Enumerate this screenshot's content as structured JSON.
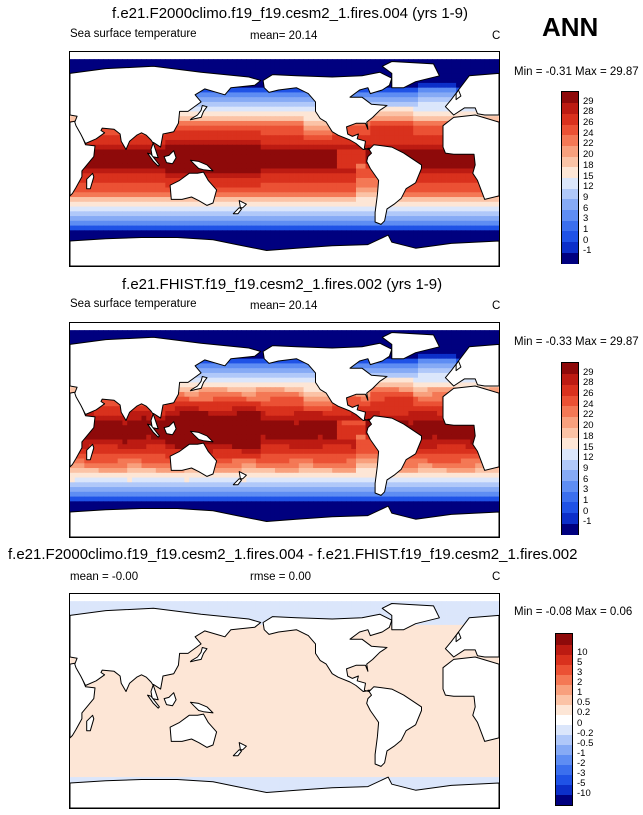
{
  "season": "ANN",
  "units": "C",
  "colors": {
    "land": "#ffffff",
    "coast": "#000000",
    "sst_scale": [
      "#00007f",
      "#0c2fc9",
      "#1f52e6",
      "#3b6fee",
      "#5e8df3",
      "#86aaf5",
      "#b0c8f9",
      "#dbe6fb",
      "#fde6d6",
      "#fbc3a6",
      "#f8a07d",
      "#f47855",
      "#eb5134",
      "#d9311d",
      "#bc1b12",
      "#8e0a0a"
    ],
    "diff_scale": [
      "#00007f",
      "#0c2fc9",
      "#1f52e6",
      "#3b6fee",
      "#5e8df3",
      "#86aaf5",
      "#b0c8f9",
      "#dbe6fb",
      "#ffffff",
      "#fde6d6",
      "#fbc3a6",
      "#f8a07d",
      "#f47855",
      "#eb5134",
      "#d9311d",
      "#bc1b12",
      "#8e0a0a"
    ]
  },
  "chart_data": [
    {
      "type": "heatmap",
      "title": "f.e21.F2000climo.f19_f19.cesm2_1.fires.004 (yrs 1-9)",
      "variable": "Sea surface temperature",
      "mean_label": "mean=  20.14",
      "mean": 20.14,
      "units": "C",
      "minmax_label": "Min =  -0.31 Max =  29.87",
      "min": -0.31,
      "max": 29.87,
      "colorbar_levels": [
        "-1",
        "0",
        "1",
        "3",
        "6",
        "9",
        "12",
        "15",
        "18",
        "20",
        "22",
        "24",
        "26",
        "28",
        "29"
      ]
    },
    {
      "type": "heatmap",
      "title": "f.e21.FHIST.f19_f19.cesm2_1.fires.002 (yrs 1-9)",
      "variable": "Sea surface temperature",
      "mean_label": "mean=  20.14",
      "mean": 20.14,
      "units": "C",
      "minmax_label": "Min =  -0.33 Max =  29.87",
      "min": -0.33,
      "max": 29.87,
      "colorbar_levels": [
        "-1",
        "0",
        "1",
        "3",
        "6",
        "9",
        "12",
        "15",
        "18",
        "20",
        "22",
        "24",
        "26",
        "28",
        "29"
      ]
    },
    {
      "type": "heatmap",
      "title": "f.e21.F2000climo.f19_f19.cesm2_1.fires.004 - f.e21.FHIST.f19_f19.cesm2_1.fires.002",
      "mean_label": "mean =  -0.00",
      "mean": -0.0,
      "rmse_label": "rmse =  0.00",
      "rmse": 0.0,
      "units": "C",
      "minmax_label": "Min =  -0.08 Max =  0.06",
      "min": -0.08,
      "max": 0.06,
      "colorbar_levels": [
        "-10",
        "-5",
        "-3",
        "-2",
        "-1",
        "-0.5",
        "-0.2",
        "0",
        "0.2",
        "0.5",
        "1",
        "2",
        "3",
        "5",
        "10"
      ]
    }
  ]
}
